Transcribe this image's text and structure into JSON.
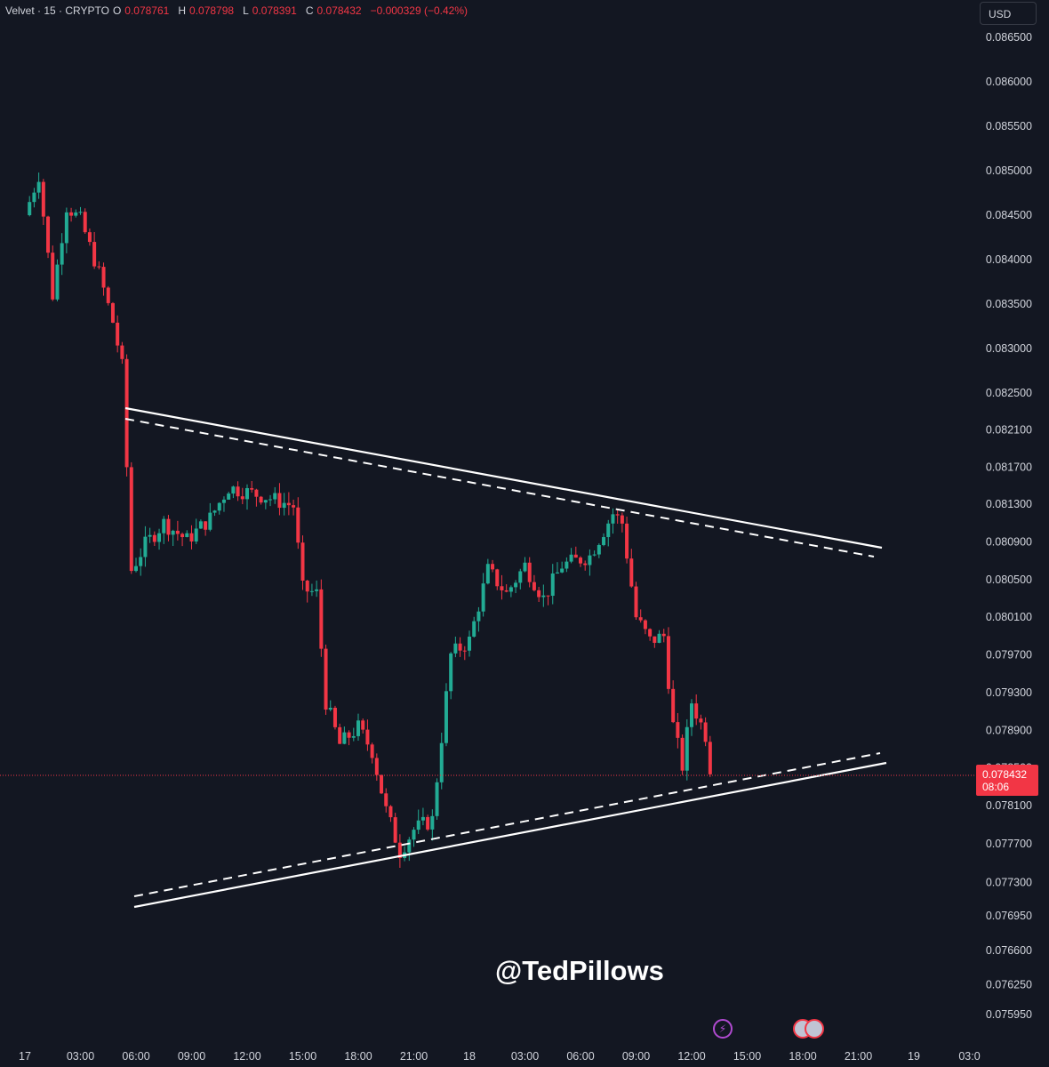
{
  "legend": {
    "symbol": "Velvet · 15 · CRYPTO",
    "o_label": "O",
    "o_value": "0.078761",
    "h_label": "H",
    "h_value": "0.078798",
    "l_label": "L",
    "l_value": "0.078391",
    "c_label": "C",
    "c_value": "0.078432",
    "change": "−0.000329 (−0.42%)"
  },
  "currency": "USD",
  "last_price": {
    "value": "0.078432",
    "countdown": "08:06"
  },
  "watermark": "@TedPillows",
  "events": {
    "event_icon": "lightning-icon",
    "flag_icon": "us-flag-icon"
  },
  "colors": {
    "up": "#22ab94",
    "down": "#f23645",
    "background": "#131722",
    "trendline": "#ffffff"
  },
  "chart_data": {
    "type": "candlestick",
    "title": "",
    "interval_minutes": 15,
    "y_ticks": [
      "0.086500",
      "0.086000",
      "0.085500",
      "0.085000",
      "0.084500",
      "0.084000",
      "0.083500",
      "0.083000",
      "0.082500",
      "0.082100",
      "0.081700",
      "0.081300",
      "0.080900",
      "0.080500",
      "0.080100",
      "0.079700",
      "0.079300",
      "0.078900",
      "0.078500",
      "0.078100",
      "0.077700",
      "0.077300",
      "0.076950",
      "0.076600",
      "0.076250",
      "0.075950"
    ],
    "x_ticks": [
      "17",
      "03:00",
      "06:00",
      "09:00",
      "12:00",
      "15:00",
      "18:00",
      "21:00",
      "18",
      "03:00",
      "06:00",
      "09:00",
      "12:00",
      "15:00",
      "18:00",
      "21:00",
      "19",
      "03:0"
    ],
    "price_anchors": [
      {
        "price": "0.076250",
        "t": 0
      },
      {
        "price": "0.078100",
        "t": 0.5
      },
      {
        "price": "0.086000",
        "t": 1
      }
    ],
    "close_path": [
      {
        "time": "17 00:00",
        "close": 0.0845
      },
      {
        "time": "17 00:45",
        "close": 0.08495
      },
      {
        "time": "17 01:30",
        "close": 0.0836
      },
      {
        "time": "17 02:15",
        "close": 0.0846
      },
      {
        "time": "17 03:00",
        "close": 0.08445
      },
      {
        "time": "17 04:00",
        "close": 0.08385
      },
      {
        "time": "17 04:45",
        "close": 0.0833
      },
      {
        "time": "17 05:15",
        "close": 0.0828
      },
      {
        "time": "17 05:45",
        "close": 0.0806
      },
      {
        "time": "17 06:30",
        "close": 0.08087
      },
      {
        "time": "17 07:30",
        "close": 0.0811
      },
      {
        "time": "17 08:45",
        "close": 0.08092
      },
      {
        "time": "17 10:00",
        "close": 0.08115
      },
      {
        "time": "17 11:00",
        "close": 0.08148
      },
      {
        "time": "17 13:00",
        "close": 0.08138
      },
      {
        "time": "17 14:30",
        "close": 0.08128
      },
      {
        "time": "17 15:00",
        "close": 0.0804
      },
      {
        "time": "17 15:45",
        "close": 0.08035
      },
      {
        "time": "17 16:15",
        "close": 0.0792
      },
      {
        "time": "17 17:00",
        "close": 0.07875
      },
      {
        "time": "17 18:00",
        "close": 0.07893
      },
      {
        "time": "17 18:45",
        "close": 0.07868
      },
      {
        "time": "17 19:30",
        "close": 0.07805
      },
      {
        "time": "17 20:15",
        "close": 0.07762
      },
      {
        "time": "17 21:00",
        "close": 0.07785
      },
      {
        "time": "17 22:00",
        "close": 0.07795
      },
      {
        "time": "17 23:00",
        "close": 0.0797
      },
      {
        "time": "18 00:00",
        "close": 0.07985
      },
      {
        "time": "18 01:00",
        "close": 0.0806
      },
      {
        "time": "18 02:00",
        "close": 0.08035
      },
      {
        "time": "18 03:00",
        "close": 0.08065
      },
      {
        "time": "18 04:00",
        "close": 0.0803
      },
      {
        "time": "18 05:00",
        "close": 0.08065
      },
      {
        "time": "18 06:30",
        "close": 0.08075
      },
      {
        "time": "18 07:45",
        "close": 0.0812
      },
      {
        "time": "18 08:15",
        "close": 0.0811
      },
      {
        "time": "18 09:00",
        "close": 0.0801
      },
      {
        "time": "18 09:45",
        "close": 0.07985
      },
      {
        "time": "18 10:30",
        "close": 0.0799
      },
      {
        "time": "18 11:00",
        "close": 0.07895
      },
      {
        "time": "18 11:30",
        "close": 0.07852
      },
      {
        "time": "18 12:00",
        "close": 0.0792
      },
      {
        "time": "18 12:45",
        "close": 0.07885
      },
      {
        "time": "18 13:00",
        "close": 0.078432
      }
    ]
  }
}
